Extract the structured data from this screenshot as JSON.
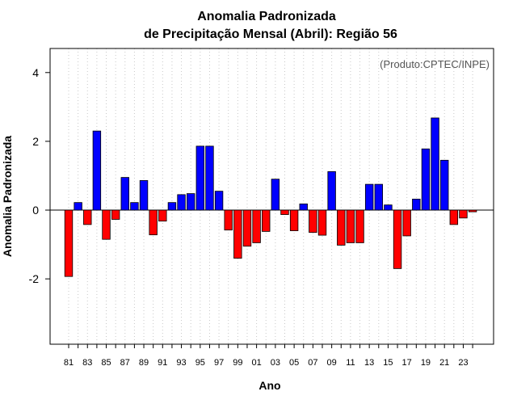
{
  "chart_data": {
    "type": "bar",
    "title_line1": "Anomalia Padronizada",
    "title_line2": "de Precipitação Mensal (Abril): Região 56",
    "credit": "(Produto:CPTEC/INPE)",
    "xlabel": "Ano",
    "ylabel": "Anomalia Padronizada",
    "ylim": [
      -3.9,
      4.7
    ],
    "yticks": [
      -2,
      0,
      2,
      4
    ],
    "ytick_labels": [
      "-2",
      "0",
      "2",
      "4"
    ],
    "grid": "vertical dotted",
    "positive_color": "#0000ff",
    "negative_color": "#ff0000",
    "categories": [
      "81",
      "82",
      "83",
      "84",
      "85",
      "86",
      "87",
      "88",
      "89",
      "90",
      "91",
      "92",
      "93",
      "94",
      "95",
      "96",
      "97",
      "98",
      "99",
      "00",
      "01",
      "02",
      "03",
      "04",
      "05",
      "06",
      "07",
      "08",
      "09",
      "10",
      "11",
      "12",
      "13",
      "14",
      "15",
      "16",
      "17",
      "18",
      "19",
      "20",
      "21",
      "22",
      "23",
      "24"
    ],
    "tick_labels": [
      "81",
      "83",
      "85",
      "87",
      "89",
      "91",
      "93",
      "95",
      "97",
      "99",
      "01",
      "03",
      "05",
      "07",
      "09",
      "11",
      "13",
      "15",
      "17",
      "19",
      "21",
      "23"
    ],
    "values": [
      -1.93,
      0.22,
      -0.42,
      2.3,
      -0.85,
      -0.27,
      0.95,
      0.22,
      0.86,
      -0.72,
      -0.32,
      0.22,
      0.45,
      0.48,
      1.86,
      1.86,
      0.55,
      -0.58,
      -1.4,
      -1.05,
      -0.95,
      -0.62,
      0.9,
      -0.13,
      -0.6,
      0.18,
      -0.65,
      -0.73,
      1.12,
      -1.02,
      -0.95,
      -0.95,
      0.75,
      0.75,
      0.15,
      -1.7,
      -0.75,
      0.32,
      1.78,
      2.68,
      1.45,
      -0.42,
      -0.23,
      -0.05
    ]
  }
}
